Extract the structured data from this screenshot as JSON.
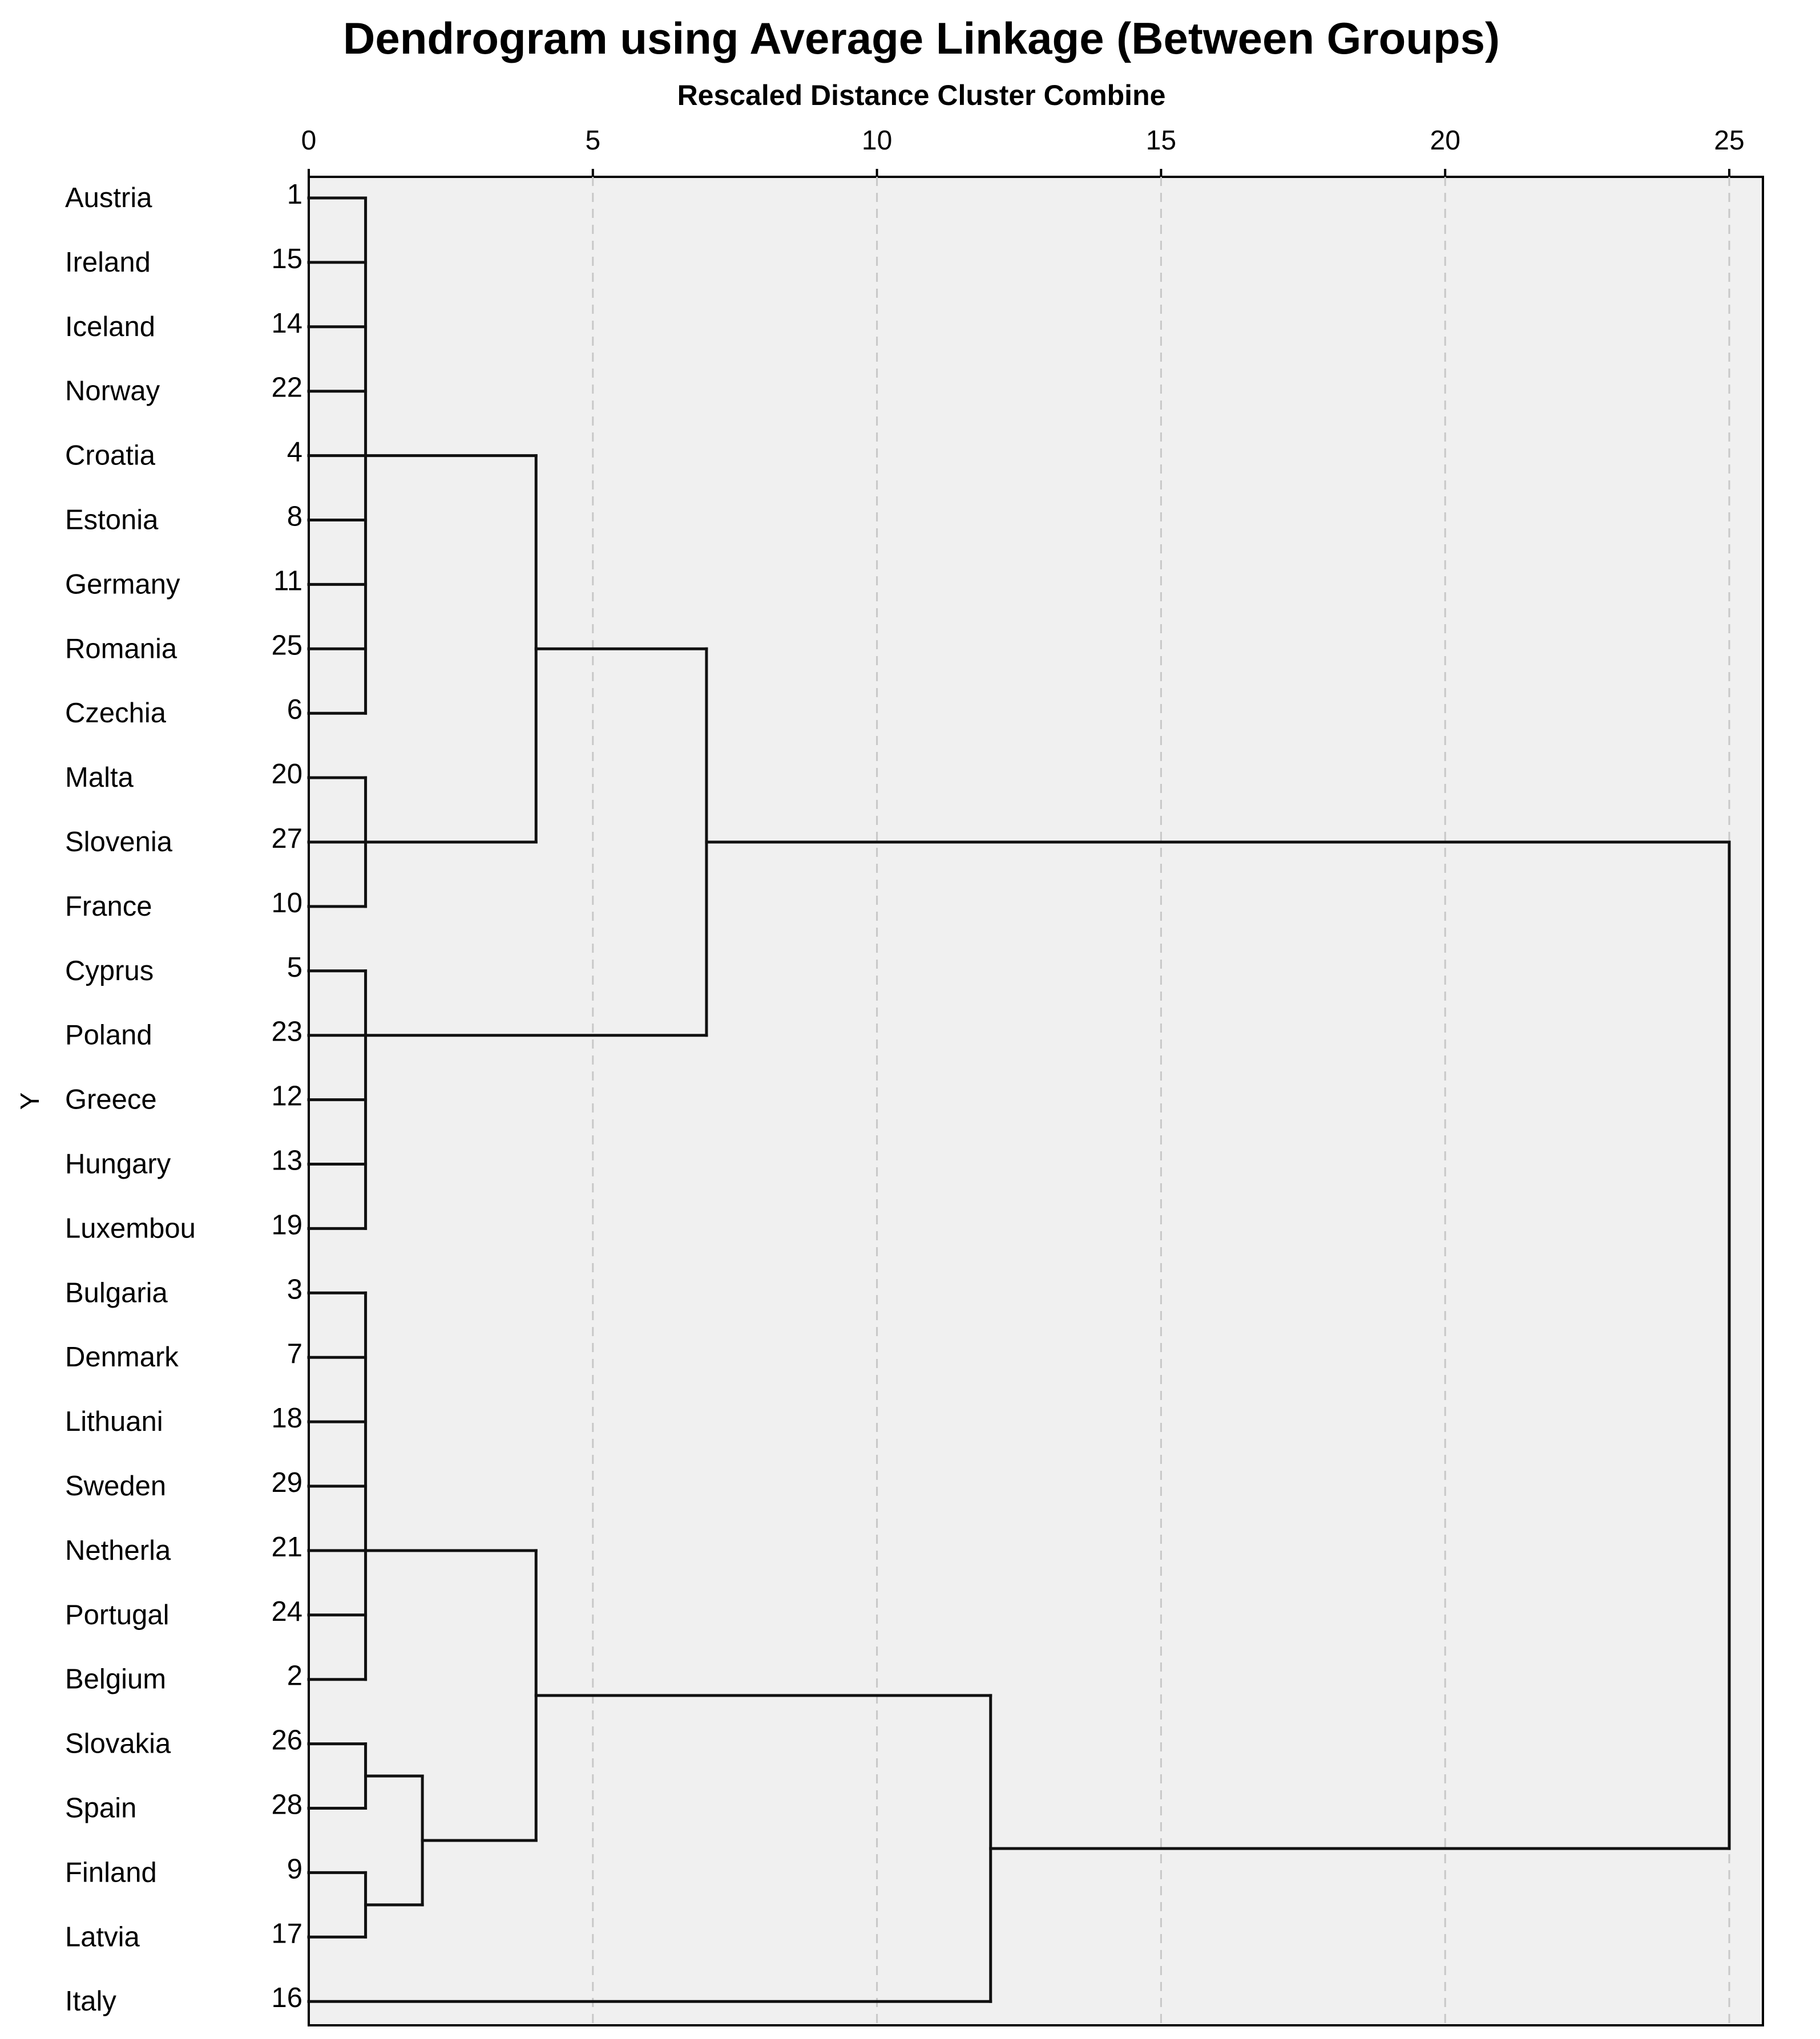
{
  "chart_data": {
    "type": "dendrogram",
    "title": "Dendrogram using Average Linkage (Between Groups)",
    "xlabel": "Rescaled Distance Cluster Combine",
    "ylabel": "Y",
    "xlim": [
      0,
      25
    ],
    "x_ticks": [
      0,
      5,
      10,
      15,
      20,
      25
    ],
    "grid": "vertical dashed",
    "leaves": [
      {
        "name": "Austria",
        "id": 1
      },
      {
        "name": "Ireland",
        "id": 15
      },
      {
        "name": "Iceland",
        "id": 14
      },
      {
        "name": "Norway",
        "id": 22
      },
      {
        "name": "Croatia",
        "id": 4
      },
      {
        "name": "Estonia",
        "id": 8
      },
      {
        "name": "Germany",
        "id": 11
      },
      {
        "name": "Romania",
        "id": 25
      },
      {
        "name": "Czechia",
        "id": 6
      },
      {
        "name": "Malta",
        "id": 20
      },
      {
        "name": "Slovenia",
        "id": 27
      },
      {
        "name": "France",
        "id": 10
      },
      {
        "name": "Cyprus",
        "id": 5
      },
      {
        "name": "Poland",
        "id": 23
      },
      {
        "name": "Greece",
        "id": 12
      },
      {
        "name": "Hungary",
        "id": 13
      },
      {
        "name": "Luxembou",
        "id": 19
      },
      {
        "name": "Bulgaria",
        "id": 3
      },
      {
        "name": "Denmark",
        "id": 7
      },
      {
        "name": "Lithuani",
        "id": 18
      },
      {
        "name": "Sweden",
        "id": 29
      },
      {
        "name": "Netherla",
        "id": 21
      },
      {
        "name": "Portugal",
        "id": 24
      },
      {
        "name": "Belgium",
        "id": 2
      },
      {
        "name": "Slovakia",
        "id": 26
      },
      {
        "name": "Spain",
        "id": 28
      },
      {
        "name": "Finland",
        "id": 9
      },
      {
        "name": "Latvia",
        "id": 17
      },
      {
        "name": "Italy",
        "id": 16
      }
    ],
    "merges": [
      {
        "children": [
          0,
          1,
          2,
          3,
          4,
          5,
          6,
          7,
          8
        ],
        "height": 1,
        "join_leaf": 4
      },
      {
        "children": [
          9,
          10,
          11
        ],
        "height": 1,
        "join_leaf": 10
      },
      {
        "children": [
          12,
          13,
          14,
          15,
          16
        ],
        "height": 1,
        "join_leaf": 13
      },
      {
        "children": [
          17,
          18,
          19,
          20,
          21,
          22,
          23
        ],
        "height": 1,
        "join_leaf": 21
      },
      {
        "children": [
          24,
          25
        ],
        "height": 1
      },
      {
        "children": [
          26,
          27
        ],
        "height": 1
      },
      {
        "children": [
          "c4",
          "c5"
        ],
        "height": 2
      },
      {
        "children": [
          "c0",
          "c1"
        ],
        "height": 4
      },
      {
        "children": [
          "c3",
          "c6"
        ],
        "height": 4
      },
      {
        "children": [
          "c7",
          "c2"
        ],
        "height": 7
      },
      {
        "children": [
          "c8",
          28
        ],
        "height": 12
      },
      {
        "children": [
          "c9",
          "c10"
        ],
        "height": 25
      }
    ]
  }
}
